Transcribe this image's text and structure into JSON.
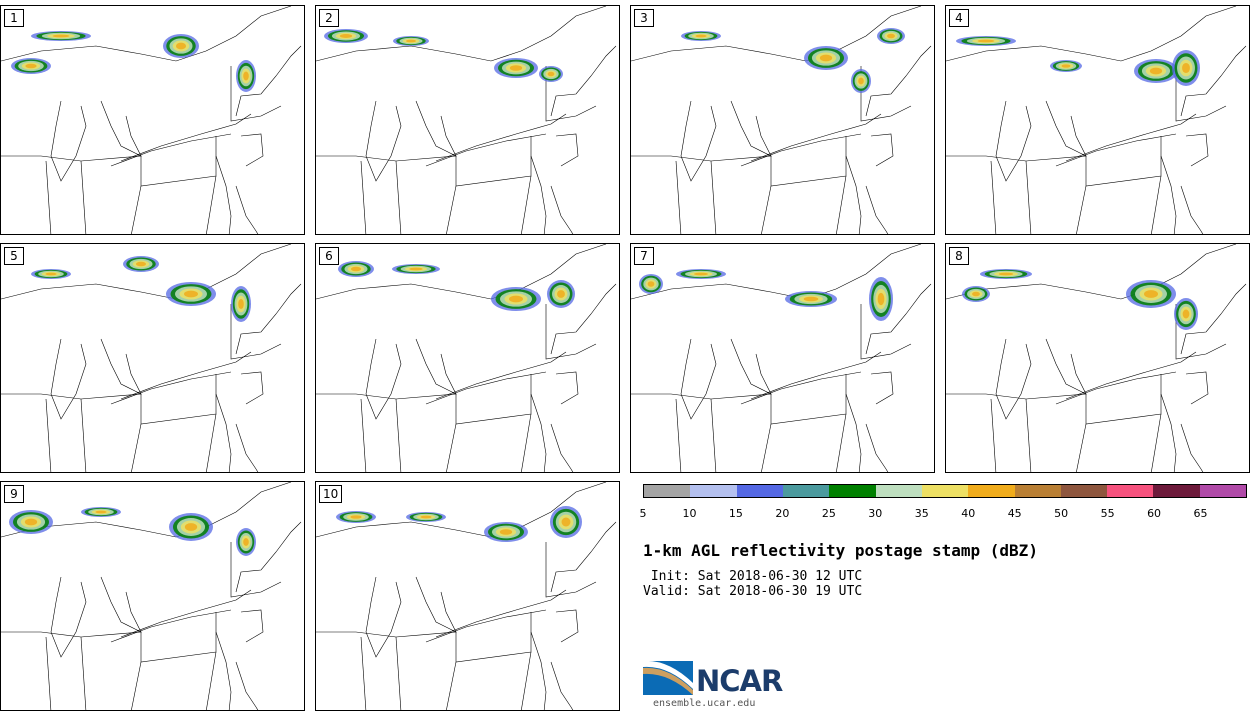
{
  "panels": [
    {
      "label": "1"
    },
    {
      "label": "2"
    },
    {
      "label": "3"
    },
    {
      "label": "4"
    },
    {
      "label": "5"
    },
    {
      "label": "6"
    },
    {
      "label": "7"
    },
    {
      "label": "8"
    },
    {
      "label": "9"
    },
    {
      "label": "10"
    }
  ],
  "colorbar": {
    "colors": [
      "#a4a4a4",
      "#b4c0ef",
      "#5468e4",
      "#4b9a9e",
      "#008000",
      "#bedfbf",
      "#ede064",
      "#f0ac1c",
      "#b97f34",
      "#8e563e",
      "#f6527e",
      "#6d1a3b",
      "#b04aa8"
    ],
    "ticks": [
      "5",
      "10",
      "15",
      "20",
      "25",
      "30",
      "35",
      "40",
      "45",
      "50",
      "55",
      "60",
      "65"
    ]
  },
  "title": "1-km AGL reflectivity postage stamp (dBZ)",
  "init": " Init: Sat 2018-06-30 12 UTC",
  "valid": "Valid: Sat 2018-06-30 19 UTC",
  "logo": {
    "text": "NCAR"
  },
  "url": "ensemble.ucar.edu"
}
